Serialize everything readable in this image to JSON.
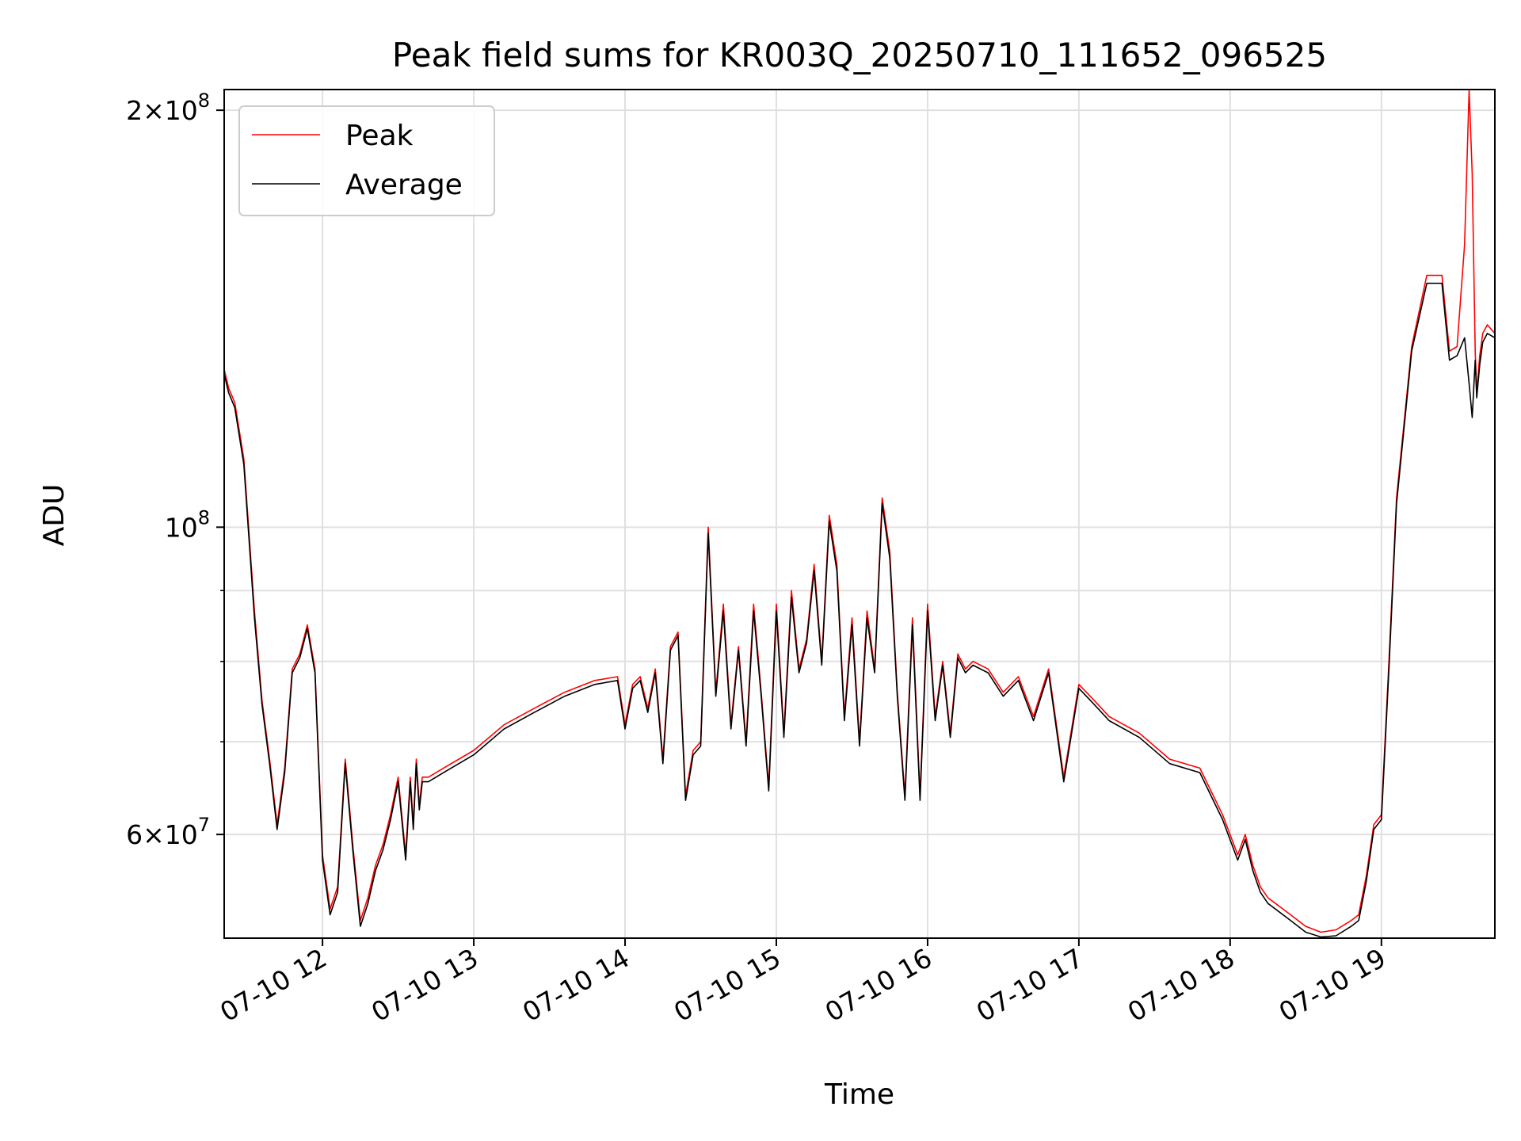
{
  "chart_data": {
    "type": "line",
    "title": "Peak field sums for KR003Q_20250710_111652_096525",
    "xlabel": "Time",
    "ylabel": "ADU",
    "yscale": "log",
    "xlim": [
      11.35,
      19.75
    ],
    "ylim": [
      50500000,
      207000000
    ],
    "grid": true,
    "legend_position": "top-left",
    "x_tick_values": [
      12,
      13,
      14,
      15,
      16,
      17,
      18,
      19
    ],
    "x_tick_labels": [
      "07-10 12",
      "07-10 13",
      "07-10 14",
      "07-10 15",
      "07-10 16",
      "07-10 17",
      "07-10 18",
      "07-10 19"
    ],
    "y_tick_values": [
      200000000,
      100000000,
      60000000
    ],
    "y_tick_labels": [
      {
        "mantissa": "2",
        "base": "10",
        "exp": "8"
      },
      {
        "mantissa": "",
        "base": "10",
        "exp": "8"
      },
      {
        "mantissa": "6",
        "base": "10",
        "exp": "7"
      }
    ],
    "series": [
      {
        "name": "Peak",
        "color": "#ff0000",
        "x": [
          11.35,
          11.38,
          11.42,
          11.48,
          11.55,
          11.6,
          11.65,
          11.7,
          11.75,
          11.8,
          11.85,
          11.9,
          11.95,
          12.0,
          12.05,
          12.1,
          12.15,
          12.2,
          12.25,
          12.3,
          12.35,
          12.4,
          12.45,
          12.5,
          12.55,
          12.58,
          12.6,
          12.62,
          12.64,
          12.66,
          12.7,
          12.8,
          13.0,
          13.2,
          13.4,
          13.6,
          13.8,
          13.95,
          14.0,
          14.05,
          14.1,
          14.15,
          14.2,
          14.25,
          14.3,
          14.35,
          14.4,
          14.45,
          14.5,
          14.55,
          14.6,
          14.65,
          14.7,
          14.75,
          14.8,
          14.85,
          14.9,
          14.95,
          15.0,
          15.05,
          15.1,
          15.15,
          15.2,
          15.25,
          15.3,
          15.35,
          15.4,
          15.45,
          15.5,
          15.55,
          15.6,
          15.65,
          15.7,
          15.75,
          15.8,
          15.85,
          15.9,
          15.95,
          16.0,
          16.05,
          16.1,
          16.15,
          16.2,
          16.25,
          16.3,
          16.4,
          16.5,
          16.6,
          16.7,
          16.8,
          16.9,
          17.0,
          17.05,
          17.1,
          17.2,
          17.4,
          17.6,
          17.8,
          17.95,
          18.05,
          18.1,
          18.15,
          18.2,
          18.25,
          18.3,
          18.4,
          18.5,
          18.6,
          18.7,
          18.8,
          18.85,
          18.9,
          18.95,
          19.0,
          19.05,
          19.1,
          19.2,
          19.3,
          19.4,
          19.45,
          19.5,
          19.55,
          19.58,
          19.6,
          19.62,
          19.63,
          19.65,
          19.67,
          19.7,
          19.75
        ],
        "values": [
          130000000,
          126000000,
          123000000,
          112000000,
          87000000,
          75000000,
          68000000,
          61000000,
          67000000,
          79000000,
          81000000,
          85000000,
          79000000,
          58000000,
          53000000,
          55000000,
          68000000,
          59000000,
          52000000,
          54000000,
          57000000,
          59000000,
          62000000,
          66000000,
          58000000,
          66000000,
          61000000,
          68000000,
          63000000,
          66000000,
          66000000,
          67000000,
          69000000,
          72000000,
          74000000,
          76000000,
          77500000,
          78000000,
          72000000,
          77000000,
          78000000,
          74000000,
          79000000,
          68000000,
          82000000,
          84000000,
          64000000,
          69000000,
          70000000,
          100000000,
          76000000,
          88000000,
          72000000,
          82000000,
          70000000,
          88000000,
          76000000,
          65000000,
          88000000,
          71000000,
          90000000,
          79000000,
          83000000,
          94000000,
          80000000,
          102000000,
          94000000,
          73000000,
          86000000,
          70000000,
          87000000,
          79000000,
          105000000,
          96000000,
          76000000,
          64000000,
          86000000,
          64000000,
          88000000,
          73000000,
          80000000,
          71000000,
          81000000,
          79000000,
          80000000,
          79000000,
          76000000,
          78000000,
          73000000,
          79000000,
          66000000,
          77000000,
          76000000,
          75000000,
          73000000,
          71000000,
          68000000,
          67000000,
          62000000,
          58000000,
          60000000,
          57000000,
          55000000,
          54000000,
          53500000,
          52500000,
          51500000,
          51000000,
          51200000,
          52000000,
          52500000,
          56000000,
          61000000,
          62000000,
          80000000,
          105000000,
          135000000,
          152000000,
          152000000,
          134000000,
          135000000,
          160000000,
          207000000,
          180000000,
          134000000,
          125000000,
          133000000,
          138000000,
          140000000,
          138000000
        ]
      },
      {
        "name": "Average",
        "color": "#000000",
        "x": [
          11.35,
          11.38,
          11.42,
          11.48,
          11.55,
          11.6,
          11.65,
          11.7,
          11.75,
          11.8,
          11.85,
          11.9,
          11.95,
          12.0,
          12.05,
          12.1,
          12.15,
          12.2,
          12.25,
          12.3,
          12.35,
          12.4,
          12.45,
          12.5,
          12.55,
          12.58,
          12.6,
          12.62,
          12.64,
          12.66,
          12.7,
          12.8,
          13.0,
          13.2,
          13.4,
          13.6,
          13.8,
          13.95,
          14.0,
          14.05,
          14.1,
          14.15,
          14.2,
          14.25,
          14.3,
          14.35,
          14.4,
          14.45,
          14.5,
          14.55,
          14.6,
          14.65,
          14.7,
          14.75,
          14.8,
          14.85,
          14.9,
          14.95,
          15.0,
          15.05,
          15.1,
          15.15,
          15.2,
          15.25,
          15.3,
          15.35,
          15.4,
          15.45,
          15.5,
          15.55,
          15.6,
          15.65,
          15.7,
          15.75,
          15.8,
          15.85,
          15.9,
          15.95,
          16.0,
          16.05,
          16.1,
          16.15,
          16.2,
          16.25,
          16.3,
          16.4,
          16.5,
          16.6,
          16.7,
          16.8,
          16.9,
          17.0,
          17.05,
          17.1,
          17.2,
          17.4,
          17.6,
          17.8,
          17.95,
          18.05,
          18.1,
          18.15,
          18.2,
          18.25,
          18.3,
          18.4,
          18.5,
          18.6,
          18.7,
          18.8,
          18.85,
          18.9,
          18.95,
          19.0,
          19.05,
          19.1,
          19.2,
          19.3,
          19.4,
          19.45,
          19.5,
          19.55,
          19.58,
          19.6,
          19.62,
          19.63,
          19.65,
          19.67,
          19.7,
          19.75
        ],
        "values": [
          129000000,
          125000000,
          122000000,
          111000000,
          86000000,
          74500000,
          67500000,
          60500000,
          66500000,
          78500000,
          80500000,
          84500000,
          78500000,
          57500000,
          52500000,
          54500000,
          67500000,
          58500000,
          51500000,
          53500000,
          56500000,
          58500000,
          61500000,
          65500000,
          57500000,
          65500000,
          60500000,
          67500000,
          62500000,
          65500000,
          65500000,
          66500000,
          68500000,
          71500000,
          73500000,
          75500000,
          77000000,
          77500000,
          71500000,
          76500000,
          77500000,
          73500000,
          78500000,
          67500000,
          81500000,
          83500000,
          63500000,
          68500000,
          69500000,
          99000000,
          75500000,
          87000000,
          71500000,
          81500000,
          69500000,
          87000000,
          75500000,
          64500000,
          87000000,
          70500000,
          89000000,
          78500000,
          82500000,
          93000000,
          79500000,
          101000000,
          93000000,
          72500000,
          85000000,
          69500000,
          86000000,
          78500000,
          104000000,
          95000000,
          75500000,
          63500000,
          85000000,
          63500000,
          87000000,
          72500000,
          79500000,
          70500000,
          80500000,
          78500000,
          79500000,
          78500000,
          75500000,
          77500000,
          72500000,
          78500000,
          65500000,
          76500000,
          75500000,
          74500000,
          72500000,
          70500000,
          67500000,
          66500000,
          61500000,
          57500000,
          59500000,
          56500000,
          54500000,
          53500000,
          53000000,
          52000000,
          51000000,
          50600000,
          50700000,
          51500000,
          52000000,
          55500000,
          60500000,
          61500000,
          79000000,
          104000000,
          134000000,
          150000000,
          150000000,
          132000000,
          133000000,
          137000000,
          127000000,
          120000000,
          132000000,
          124000000,
          131000000,
          136000000,
          138000000,
          137000000
        ]
      }
    ]
  }
}
